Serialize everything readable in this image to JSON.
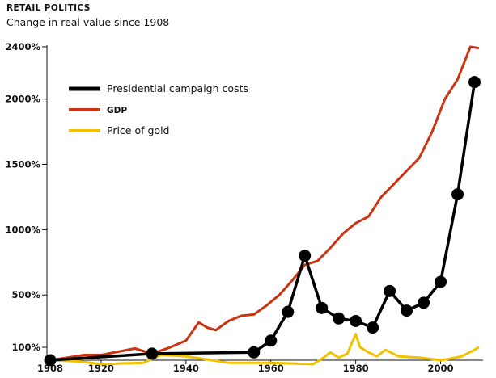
{
  "chart_data": {
    "type": "line",
    "kicker": "RETAIL POLITICS",
    "title": "Change in real value since 1908",
    "xlim": [
      1908,
      2010
    ],
    "ylim": [
      0,
      2450
    ],
    "x_ticks": [
      1908,
      1920,
      1940,
      1960,
      1980,
      2000
    ],
    "y_ticks": [
      {
        "value": 100,
        "label": "100%"
      },
      {
        "value": 500,
        "label": "500%"
      },
      {
        "value": 1000,
        "label": "1000%"
      },
      {
        "value": 1500,
        "label": "1500%"
      },
      {
        "value": 2000,
        "label": "2000%"
      },
      {
        "value": 2400,
        "label": "2400%"
      }
    ],
    "legend_position": "top-left",
    "series": [
      {
        "name": "Presidential campaign costs",
        "color": "#000000",
        "markers": true,
        "x": [
          1908,
          1932,
          1956,
          1960,
          1964,
          1968,
          1972,
          1976,
          1980,
          1984,
          1988,
          1992,
          1996,
          2000,
          2004,
          2008
        ],
        "y": [
          0,
          50,
          60,
          150,
          370,
          800,
          400,
          320,
          300,
          250,
          530,
          380,
          440,
          600,
          1270,
          2130
        ]
      },
      {
        "name": "GDP",
        "color": "#cc3311",
        "markers": false,
        "x": [
          1908,
          1912,
          1916,
          1920,
          1924,
          1928,
          1932,
          1936,
          1940,
          1943,
          1945,
          1947,
          1950,
          1953,
          1956,
          1959,
          1962,
          1965,
          1968,
          1971,
          1974,
          1977,
          1980,
          1983,
          1986,
          1989,
          1992,
          1995,
          1998,
          2001,
          2004,
          2007,
          2009
        ],
        "y": [
          0,
          20,
          40,
          40,
          65,
          90,
          50,
          95,
          150,
          290,
          250,
          230,
          300,
          340,
          350,
          420,
          500,
          610,
          730,
          760,
          860,
          970,
          1050,
          1100,
          1250,
          1350,
          1450,
          1550,
          1750,
          2000,
          2150,
          2400,
          2390
        ]
      },
      {
        "name": "Price of gold",
        "color": "#f2c200",
        "markers": false,
        "x": [
          1908,
          1915,
          1920,
          1925,
          1930,
          1934,
          1940,
          1950,
          1960,
          1970,
          1972,
          1974,
          1976,
          1978,
          1980,
          1981,
          1983,
          1985,
          1987,
          1990,
          1995,
          2000,
          2002,
          2005,
          2008,
          2009
        ],
        "y": [
          0,
          -10,
          -30,
          -25,
          -20,
          40,
          30,
          -20,
          -20,
          -30,
          10,
          60,
          20,
          50,
          200,
          100,
          60,
          30,
          80,
          30,
          20,
          0,
          10,
          30,
          80,
          100
        ]
      }
    ]
  }
}
